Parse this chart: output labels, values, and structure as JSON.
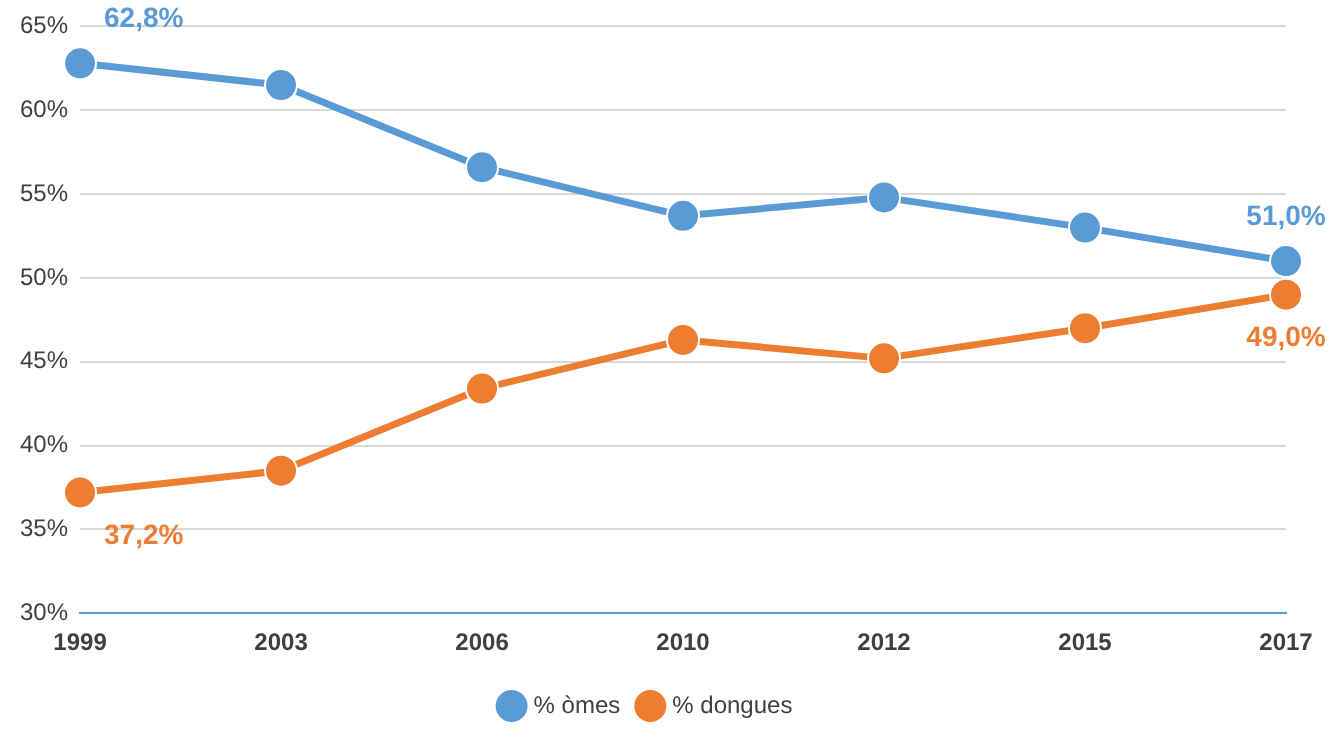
{
  "chart_data": {
    "type": "line",
    "categories": [
      "1999",
      "2003",
      "2006",
      "2010",
      "2012",
      "2015",
      "2017"
    ],
    "series": [
      {
        "name": "% òmes",
        "color": "#5b9bd5",
        "values": [
          62.8,
          61.5,
          56.6,
          53.7,
          54.8,
          53.0,
          51.0
        ],
        "value_labels": [
          "62,8%",
          null,
          null,
          null,
          null,
          null,
          "51,0%"
        ]
      },
      {
        "name": "% dongues",
        "color": "#ed7d31",
        "values": [
          37.2,
          38.5,
          43.4,
          46.3,
          45.2,
          47.0,
          49.0
        ],
        "value_labels": [
          "37,2%",
          null,
          null,
          null,
          null,
          null,
          "49,0%"
        ]
      }
    ],
    "ylim": [
      30,
      65
    ],
    "yticks": [
      {
        "value": 30,
        "label": "30%"
      },
      {
        "value": 35,
        "label": "35%"
      },
      {
        "value": 40,
        "label": "40%"
      },
      {
        "value": 45,
        "label": "45%"
      },
      {
        "value": 50,
        "label": "50%"
      },
      {
        "value": 55,
        "label": "55%"
      },
      {
        "value": 60,
        "label": "60%"
      },
      {
        "value": 65,
        "label": "65%"
      }
    ],
    "grid": "y",
    "legend": "bottom",
    "marker": "circle",
    "line_style": "solid"
  }
}
